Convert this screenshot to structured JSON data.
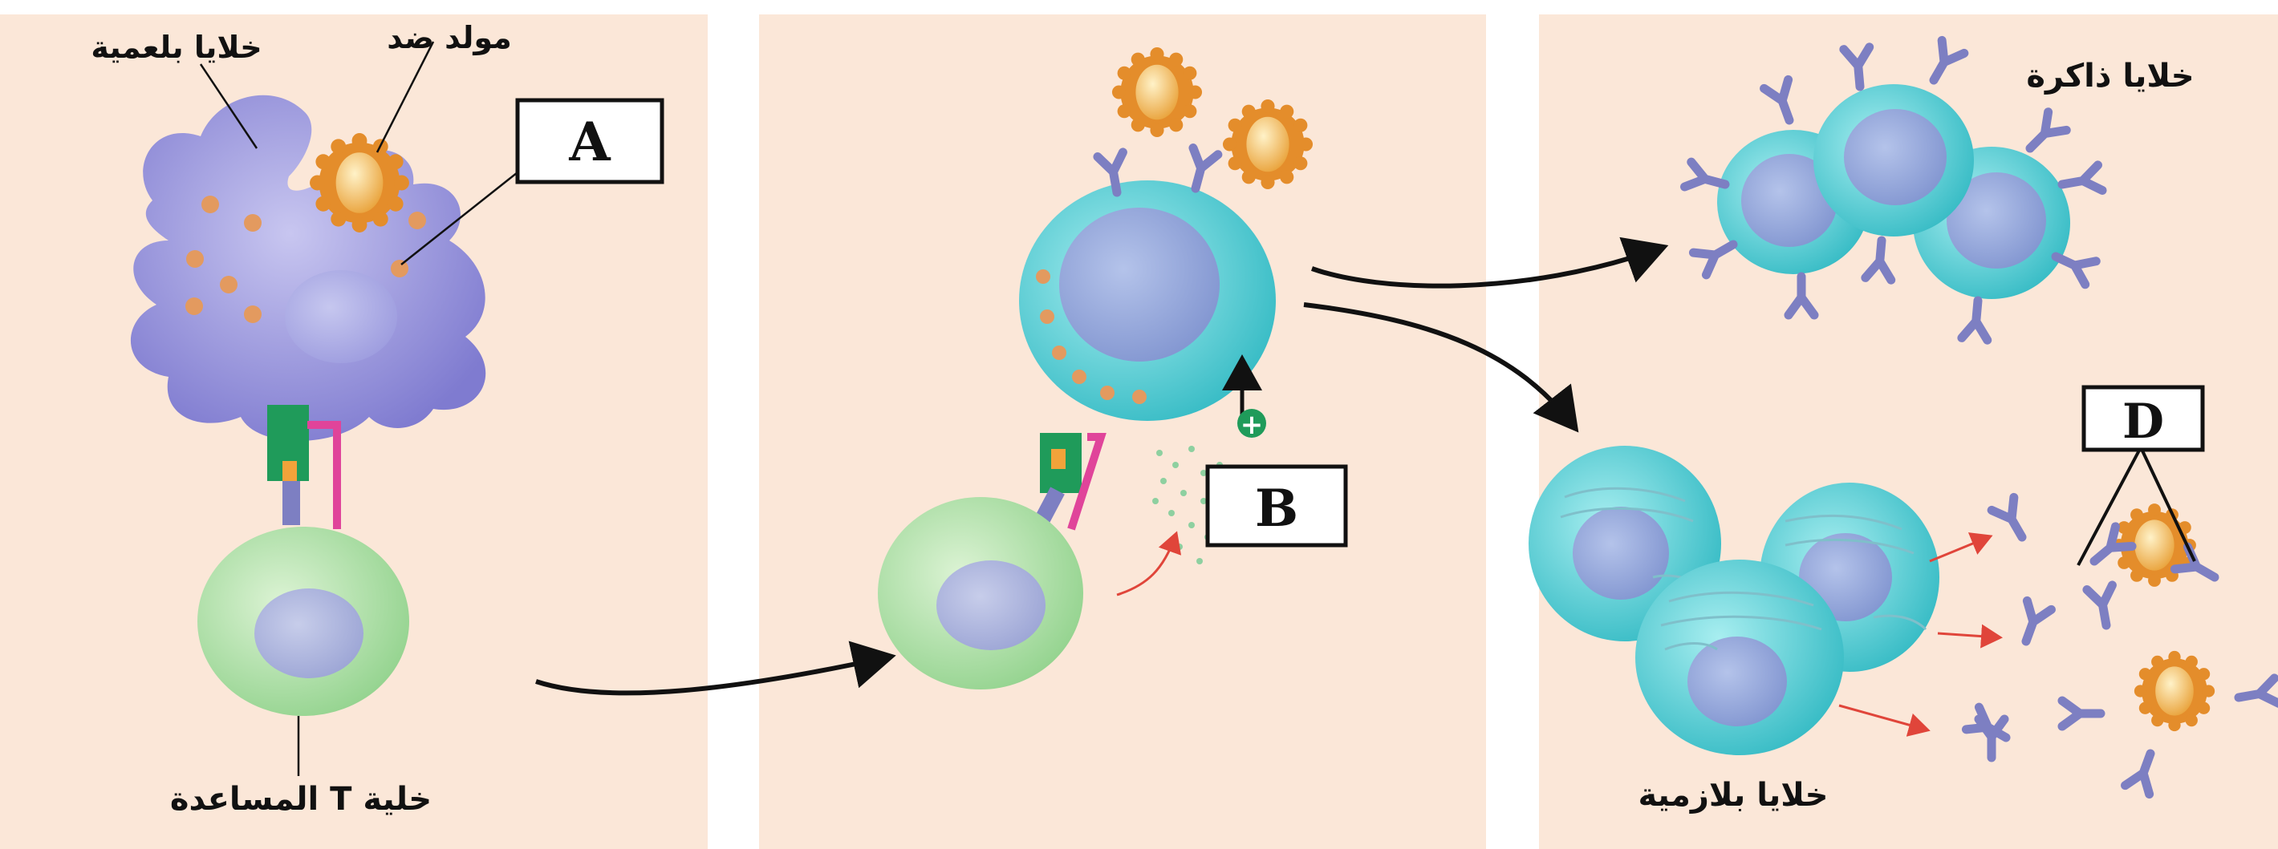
{
  "panels": [
    {
      "id": "panel-1",
      "labels": {
        "phagocyte": "خلايا بلعمية",
        "antigen": "مولد ضد",
        "t_cell": "خلية T المساعدة",
        "box": "A"
      }
    },
    {
      "id": "panel-2",
      "labels": {
        "box": "B",
        "plus": "+"
      }
    },
    {
      "id": "panel-3",
      "labels": {
        "memory": "خلايا ذاكرة",
        "plasma": "خلايا بلازمية",
        "box": "D"
      }
    }
  ],
  "colors": {
    "panel_bg": "#fbe7d8",
    "phagocyte": "#8a87d6",
    "antigen": "#f2a33a",
    "t_cell": "#a8dba0",
    "b_cell": "#3ec1c7",
    "antibody": "#7d7fc2",
    "arrow": "#111111",
    "secretion_arrow": "#e0453a",
    "receptor_green": "#1f9b5a",
    "receptor_pink": "#e0449a"
  }
}
